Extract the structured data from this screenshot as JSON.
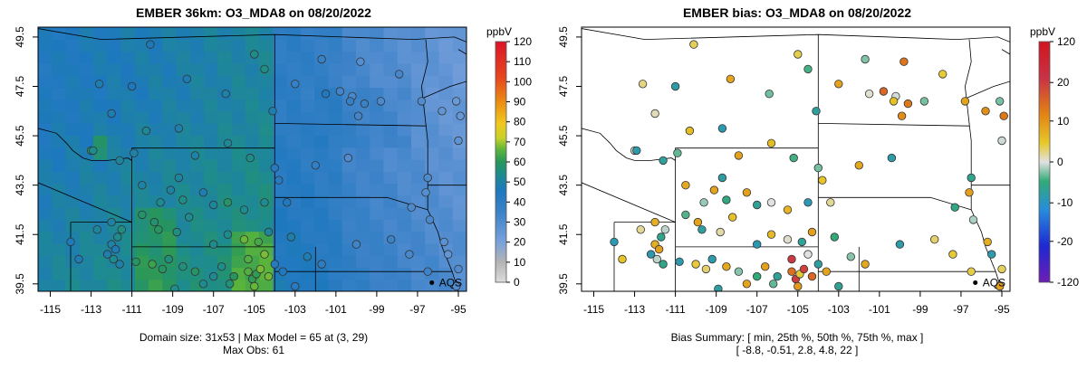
{
  "left_panel": {
    "title": "EMBER 36km: O3_MDA8 on 08/20/2022",
    "colorbar_unit": "ppbV",
    "colorbar_ticks": [
      "0",
      "10",
      "20",
      "30",
      "40",
      "50",
      "60",
      "70",
      "80",
      "90",
      "100",
      "110",
      "120"
    ],
    "caption_line1": "Domain size: 31x53 | Max Model = 65 at (3, 29)",
    "caption_line2": "Max Obs: 61"
  },
  "right_panel": {
    "title": "EMBER bias: O3_MDA8 on 08/20/2022",
    "colorbar_unit": "ppbV",
    "colorbar_ticks": [
      "120",
      "20",
      "10",
      "0",
      "-10",
      "-20",
      "-120"
    ],
    "caption_line1": "Bias Summary: [ min, 25th %, 50th %, 75th %, max ]",
    "caption_line2": "[ -8.8,  -0.51,  2.8,  4.8,  22 ]"
  },
  "map_axes": {
    "x_ticks": [
      "-115",
      "-113",
      "-111",
      "-109",
      "-107",
      "-105",
      "-103",
      "-101",
      "-99",
      "-97",
      "-95"
    ],
    "y_ticks": [
      "39.5",
      "41.5",
      "43.5",
      "45.5",
      "47.5",
      "49.5"
    ]
  },
  "annotation": {
    "label": "AQS"
  },
  "chart_data": [
    {
      "type": "heatmap",
      "title": "EMBER 36km: O3_MDA8 on 08/20/2022",
      "xlim": [
        -115,
        -95
      ],
      "ylim": [
        39.5,
        49.5
      ],
      "colorbar": {
        "label": "ppbV",
        "range": [
          0,
          120
        ]
      }
    },
    {
      "type": "scatter",
      "title": "EMBER bias: O3_MDA8 on 08/20/2022",
      "xlim": [
        -115,
        -95
      ],
      "ylim": [
        39.5,
        49.5
      ],
      "colorbar": {
        "label": "ppbV",
        "range": [
          -120,
          120
        ]
      },
      "bias_summary": {
        "min": -8.8,
        "p25": -0.51,
        "p50": 2.8,
        "p75": 4.8,
        "max": 22
      }
    }
  ]
}
